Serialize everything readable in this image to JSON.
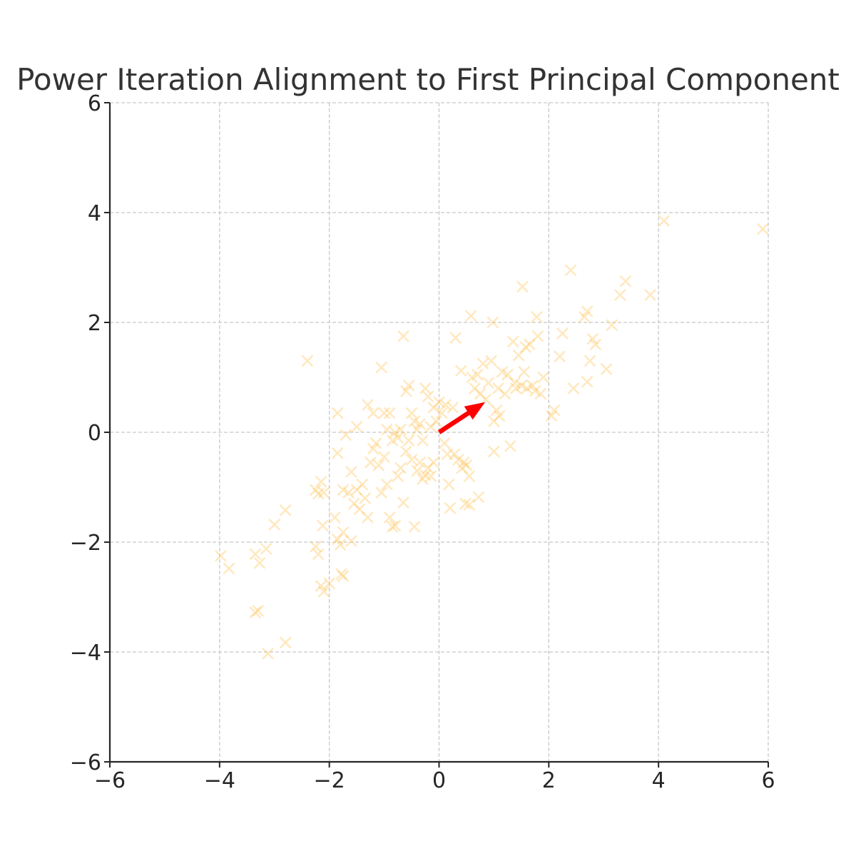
{
  "chart_data": {
    "type": "scatter",
    "title": "Power Iteration Alignment to First Principal Component",
    "xlabel": "",
    "ylabel": "",
    "xlim": [
      -6,
      6
    ],
    "ylim": [
      -6,
      6
    ],
    "x_ticks": [
      -6,
      -4,
      -2,
      0,
      2,
      4,
      6
    ],
    "y_ticks": [
      -6,
      -4,
      -2,
      0,
      2,
      4,
      6
    ],
    "x_tick_labels": [
      "−6",
      "−4",
      "−2",
      "0",
      "2",
      "4",
      "6"
    ],
    "y_tick_labels": [
      "−6",
      "−4",
      "−2",
      "0",
      "2",
      "4",
      "6"
    ],
    "grid": true,
    "marker": "x",
    "point_color": "#ffc04d",
    "point_opacity": 0.35,
    "vector_color": "#ff0000",
    "vector": {
      "x0": 0,
      "y0": 0,
      "x1": 0.84,
      "y1": 0.55
    },
    "points": [
      [
        -3.98,
        -2.25
      ],
      [
        -3.83,
        -2.48
      ],
      [
        -3.35,
        -2.22
      ],
      [
        -3.27,
        -2.38
      ],
      [
        -3.15,
        -2.12
      ],
      [
        -3.35,
        -3.28
      ],
      [
        -3.3,
        -3.25
      ],
      [
        -3.12,
        -4.03
      ],
      [
        -2.8,
        -3.83
      ],
      [
        -3.0,
        -1.68
      ],
      [
        -2.8,
        -1.42
      ],
      [
        -2.4,
        1.3
      ],
      [
        -2.25,
        -2.08
      ],
      [
        -2.2,
        -2.22
      ],
      [
        -2.15,
        -2.8
      ],
      [
        -2.1,
        -2.9
      ],
      [
        -2.0,
        -2.75
      ],
      [
        -1.78,
        -2.58
      ],
      [
        -1.75,
        -2.62
      ],
      [
        -2.25,
        -1.05
      ],
      [
        -2.2,
        -1.12
      ],
      [
        -2.15,
        -0.9
      ],
      [
        -2.12,
        -1.7
      ],
      [
        -2.1,
        -1.1
      ],
      [
        -1.9,
        -1.55
      ],
      [
        -1.85,
        -1.95
      ],
      [
        -1.8,
        -2.05
      ],
      [
        -1.75,
        -1.82
      ],
      [
        -1.75,
        -1.05
      ],
      [
        -1.65,
        -1.1
      ],
      [
        -1.6,
        -0.72
      ],
      [
        -1.55,
        -1.3
      ],
      [
        -1.6,
        -1.98
      ],
      [
        -1.5,
        -1.05
      ],
      [
        -1.45,
        -1.4
      ],
      [
        -1.4,
        -0.95
      ],
      [
        -1.35,
        -1.2
      ],
      [
        -1.3,
        -1.55
      ],
      [
        -1.25,
        -0.55
      ],
      [
        -1.2,
        -0.3
      ],
      [
        -1.15,
        -0.2
      ],
      [
        -1.1,
        -0.6
      ],
      [
        -1.05,
        -1.1
      ],
      [
        -1.0,
        -0.45
      ],
      [
        -0.95,
        -0.95
      ],
      [
        -0.9,
        -1.55
      ],
      [
        -0.85,
        -1.72
      ],
      [
        -0.8,
        -1.7
      ],
      [
        -0.75,
        -0.8
      ],
      [
        -0.7,
        -0.65
      ],
      [
        -0.65,
        -1.28
      ],
      [
        -0.6,
        -0.35
      ],
      [
        -0.55,
        -0.15
      ],
      [
        -0.5,
        -0.5
      ],
      [
        -0.45,
        -1.72
      ],
      [
        -0.4,
        -0.7
      ],
      [
        -0.35,
        -0.55
      ],
      [
        -0.3,
        -0.85
      ],
      [
        -0.25,
        -0.78
      ],
      [
        -0.2,
        -0.65
      ],
      [
        -0.15,
        -0.8
      ],
      [
        -0.1,
        -0.55
      ],
      [
        -1.85,
        0.35
      ],
      [
        -1.85,
        -0.38
      ],
      [
        -1.7,
        -0.05
      ],
      [
        -1.5,
        0.1
      ],
      [
        -1.3,
        0.5
      ],
      [
        -1.2,
        0.35
      ],
      [
        -1.05,
        1.18
      ],
      [
        -1.0,
        0.35
      ],
      [
        -0.95,
        0.05
      ],
      [
        -0.9,
        0.35
      ],
      [
        -0.85,
        -0.15
      ],
      [
        -0.8,
        0.0
      ],
      [
        -0.75,
        -0.1
      ],
      [
        -0.7,
        0.05
      ],
      [
        -0.65,
        1.75
      ],
      [
        -0.6,
        0.75
      ],
      [
        -0.55,
        0.85
      ],
      [
        -0.5,
        0.35
      ],
      [
        -0.45,
        0.2
      ],
      [
        -0.4,
        0.05
      ],
      [
        -0.35,
        0.15
      ],
      [
        -0.3,
        -0.15
      ],
      [
        -0.25,
        0.8
      ],
      [
        -0.2,
        0.65
      ],
      [
        -0.15,
        0.1
      ],
      [
        -0.1,
        0.45
      ],
      [
        -0.05,
        0.2
      ],
      [
        0.0,
        0.55
      ],
      [
        0.05,
        0.35
      ],
      [
        0.1,
        -0.2
      ],
      [
        0.12,
        0.5
      ],
      [
        0.15,
        -0.4
      ],
      [
        0.18,
        -0.95
      ],
      [
        0.2,
        -1.38
      ],
      [
        0.25,
        0.45
      ],
      [
        0.28,
        -0.4
      ],
      [
        0.3,
        1.72
      ],
      [
        0.35,
        -0.5
      ],
      [
        0.4,
        1.12
      ],
      [
        0.42,
        -0.65
      ],
      [
        0.45,
        -0.55
      ],
      [
        0.48,
        -1.3
      ],
      [
        0.5,
        -0.6
      ],
      [
        0.55,
        -0.8
      ],
      [
        0.55,
        -1.32
      ],
      [
        0.58,
        2.12
      ],
      [
        0.6,
        1.0
      ],
      [
        0.65,
        0.8
      ],
      [
        0.7,
        1.05
      ],
      [
        0.72,
        -1.18
      ],
      [
        0.75,
        0.7
      ],
      [
        0.8,
        1.25
      ],
      [
        0.85,
        0.6
      ],
      [
        0.9,
        0.9
      ],
      [
        0.95,
        1.3
      ],
      [
        0.98,
        2.0
      ],
      [
        1.0,
        -0.35
      ],
      [
        1.0,
        0.2
      ],
      [
        1.05,
        0.4
      ],
      [
        1.08,
        0.8
      ],
      [
        1.1,
        0.3
      ],
      [
        1.15,
        1.1
      ],
      [
        1.2,
        0.7
      ],
      [
        1.25,
        1.05
      ],
      [
        1.3,
        -0.25
      ],
      [
        1.35,
        1.65
      ],
      [
        1.38,
        0.9
      ],
      [
        1.4,
        0.8
      ],
      [
        1.45,
        1.4
      ],
      [
        1.5,
        0.85
      ],
      [
        1.52,
        2.65
      ],
      [
        1.55,
        1.1
      ],
      [
        1.58,
        1.55
      ],
      [
        1.6,
        0.8
      ],
      [
        1.65,
        1.6
      ],
      [
        1.7,
        0.85
      ],
      [
        1.75,
        0.75
      ],
      [
        1.78,
        2.1
      ],
      [
        1.8,
        1.75
      ],
      [
        1.85,
        0.7
      ],
      [
        1.9,
        1.0
      ],
      [
        2.05,
        0.3
      ],
      [
        2.1,
        0.4
      ],
      [
        2.2,
        1.38
      ],
      [
        2.25,
        1.8
      ],
      [
        2.4,
        2.95
      ],
      [
        2.45,
        0.8
      ],
      [
        2.65,
        2.1
      ],
      [
        2.7,
        2.2
      ],
      [
        2.75,
        1.3
      ],
      [
        2.7,
        0.92
      ],
      [
        2.8,
        1.7
      ],
      [
        2.85,
        1.6
      ],
      [
        3.05,
        1.15
      ],
      [
        3.15,
        1.95
      ],
      [
        3.3,
        2.5
      ],
      [
        3.4,
        2.75
      ],
      [
        3.85,
        2.5
      ],
      [
        4.1,
        3.85
      ],
      [
        5.9,
        3.7
      ]
    ]
  }
}
